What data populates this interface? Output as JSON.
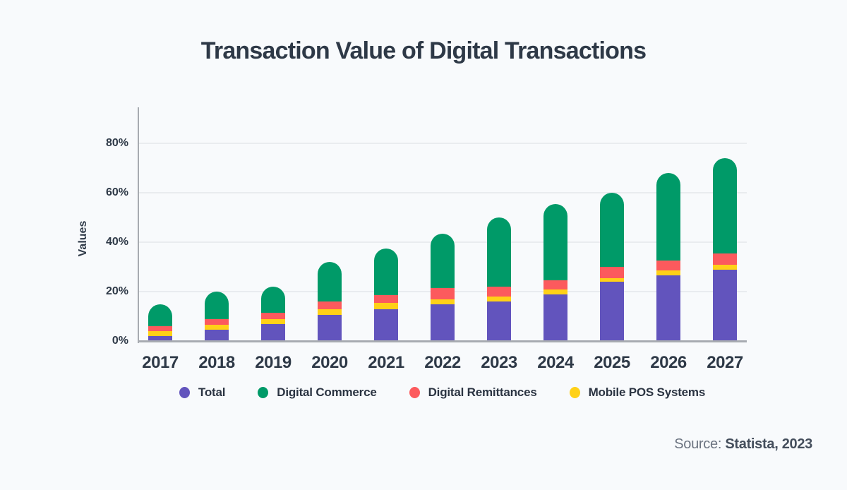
{
  "page_title": "Transaction Value of Digital Transactions",
  "footer": {
    "source_prefix": "Source: ",
    "source_value": "Statista, 2023"
  },
  "colors": {
    "background": "#f8fafc",
    "text": "#2e3947",
    "axis_line": "#a7abb1",
    "gridline": "#e9ecef",
    "total": "#6254bd",
    "digital_commerce": "#009a68",
    "digital_remittances": "#fc5a5d",
    "mobile_pos_systems": "#ffd117"
  },
  "chart_data": {
    "type": "bar",
    "stacked": true,
    "title": "Transaction Value of Digital Transactions",
    "xlabel": "",
    "ylabel": "Values",
    "ylim": [
      0,
      94.5
    ],
    "grid": "horizontal",
    "legend_position": "bottom",
    "categories": [
      "2017",
      "2018",
      "2019",
      "2020",
      "2021",
      "2022",
      "2023",
      "2024",
      "2025",
      "2026",
      "2027"
    ],
    "yticks": [
      {
        "value": 0,
        "label": "0%"
      },
      {
        "value": 20,
        "label": "20%"
      },
      {
        "value": 40,
        "label": "40%"
      },
      {
        "value": 60,
        "label": "60%"
      },
      {
        "value": 80,
        "label": "80%"
      }
    ],
    "series": [
      {
        "name": "Total",
        "color": "#6254bd",
        "stack_position": "bottom",
        "values": [
          2,
          4.5,
          7,
          10.5,
          13,
          15,
          16,
          19,
          24,
          26.5,
          29
        ]
      },
      {
        "name": "Mobile POS Systems",
        "color": "#ffd117",
        "stack_position": "second",
        "values": [
          2,
          2,
          2,
          2.5,
          2.5,
          2,
          2,
          2,
          1.5,
          2,
          2
        ]
      },
      {
        "name": "Digital Remittances",
        "color": "#fc5a5d",
        "stack_position": "third",
        "values": [
          2,
          2.5,
          2.5,
          3,
          3,
          4.5,
          4,
          3.5,
          4.5,
          4,
          4.5
        ]
      },
      {
        "name": "Digital Commerce",
        "color": "#009a68",
        "stack_position": "top",
        "values": [
          9,
          11,
          10.5,
          16,
          19,
          22,
          28,
          31,
          30,
          35.5,
          38.5
        ]
      }
    ],
    "stack_totals": [
      15,
      20,
      22,
      32,
      37.5,
      43.5,
      50,
      55.5,
      60,
      68,
      74
    ],
    "legend": [
      {
        "label": "Total",
        "color": "#6254bd"
      },
      {
        "label": "Digital Commerce",
        "color": "#009a68"
      },
      {
        "label": "Digital Remittances",
        "color": "#fc5a5d"
      },
      {
        "label": "Mobile POS Systems",
        "color": "#ffd117"
      }
    ]
  }
}
